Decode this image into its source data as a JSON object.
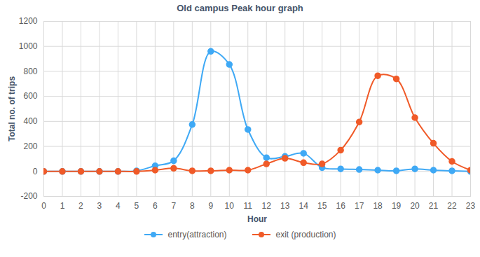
{
  "chart_data": {
    "type": "line",
    "title": "Old campus Peak hour graph",
    "x_label": "Hour",
    "y_label": "Total no. of trips",
    "x": [
      0,
      1,
      2,
      3,
      4,
      5,
      6,
      7,
      8,
      9,
      10,
      11,
      12,
      13,
      14,
      15,
      16,
      17,
      18,
      19,
      20,
      21,
      22,
      23
    ],
    "series": [
      {
        "name": "entry(attraction)",
        "color": "#3fa9f5",
        "values": [
          0,
          0,
          0,
          0,
          0,
          5,
          45,
          85,
          375,
          960,
          855,
          335,
          110,
          120,
          145,
          30,
          20,
          15,
          10,
          5,
          20,
          10,
          5,
          0
        ]
      },
      {
        "name": "exit (production)",
        "color": "#f05a28",
        "values": [
          0,
          0,
          0,
          0,
          0,
          0,
          10,
          25,
          5,
          5,
          10,
          10,
          60,
          105,
          70,
          60,
          170,
          395,
          765,
          740,
          430,
          225,
          80,
          10
        ]
      }
    ],
    "xlim": [
      0,
      23
    ],
    "xticks": [
      0,
      1,
      2,
      3,
      4,
      5,
      6,
      7,
      8,
      9,
      10,
      11,
      12,
      13,
      14,
      15,
      16,
      17,
      18,
      19,
      20,
      21,
      22,
      23
    ],
    "ylim": [
      -200,
      1200
    ],
    "yticks": [
      -200,
      0,
      200,
      400,
      600,
      800,
      1000,
      1200
    ],
    "grid": true,
    "legend": "bottom",
    "marker": "circle",
    "line_style": "solid"
  }
}
